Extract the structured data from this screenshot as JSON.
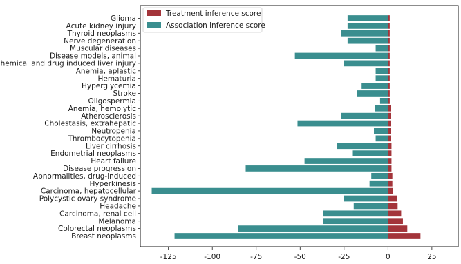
{
  "chart_data": {
    "type": "bar",
    "orientation": "horizontal",
    "categories": [
      "Glioma",
      "Acute kidney injury",
      "Thyroid neoplasms",
      "Nerve degeneration",
      "Muscular diseases",
      "Disease models, animal",
      "Chemical and drug induced liver injury",
      "Anemia, aplastic",
      "Hematuria",
      "Hyperglycemia",
      "Stroke",
      "Oligospermia",
      "Anemia, hemolytic",
      "Atherosclerosis",
      "Cholestasis, extrahepatic",
      "Neutropenia",
      "Thrombocytopenia",
      "Liver cirrhosis",
      "Endometrial neoplasms",
      "Heart failure",
      "Disease progression",
      "Abnormalities, drug-induced",
      "Hyperkinesis",
      "Carcinoma, hepatocellular",
      "Polycystic ovary syndrome",
      "Headache",
      "Carcinoma, renal cell",
      "Melanoma",
      "Colorectal neoplasms",
      "Breast neoplasms"
    ],
    "series": [
      {
        "name": "Treatment inference score",
        "color": "#a3343a",
        "values": [
          1,
          1,
          1,
          1,
          1,
          1,
          1,
          1,
          1,
          1,
          1,
          1,
          1.5,
          1.5,
          1.5,
          1.5,
          1.5,
          2,
          2,
          2,
          2,
          2.5,
          2.5,
          3,
          5,
          5.5,
          7.5,
          8.5,
          11,
          18.5
        ]
      },
      {
        "name": "Association inference score",
        "color": "#3a8e8f",
        "values": [
          -23,
          -23,
          -26.5,
          -23,
          -7,
          -53,
          -25,
          -7,
          -7,
          -15,
          -17.5,
          -4.5,
          -7.5,
          -26.5,
          -51.5,
          -8,
          -7,
          -29,
          -20,
          -47.5,
          -81,
          -9.5,
          -10.5,
          -134.5,
          -25,
          -19.5,
          -37,
          -37,
          -85.5,
          -121.5
        ]
      }
    ],
    "xticks": [
      "-125",
      "-100",
      "-75",
      "-50",
      "-25",
      "0",
      "25"
    ],
    "xtick_values": [
      -125,
      -100,
      -75,
      -50,
      -25,
      0,
      25
    ],
    "xlim": [
      -141,
      40
    ],
    "title": "",
    "xlabel": "",
    "ylabel": "",
    "legend_position": "top-left",
    "grid": false
  }
}
